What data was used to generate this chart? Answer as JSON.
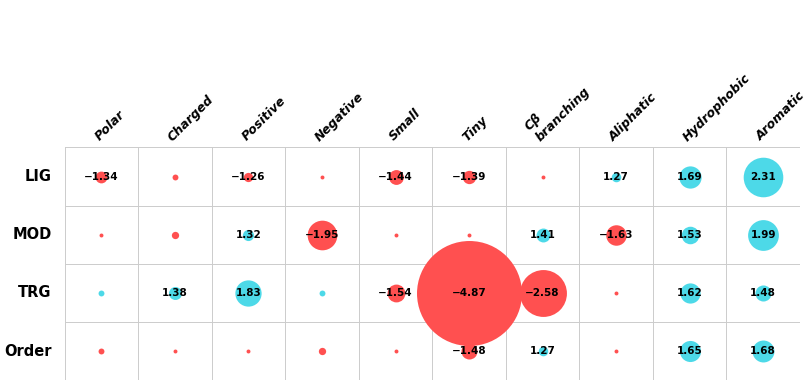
{
  "rows": [
    "LIG",
    "MOD",
    "TRG",
    "Order"
  ],
  "cols": [
    "Polar",
    "Charged",
    "Positive",
    "Negative",
    "Small",
    "Tiny",
    "Cβ\nbranching",
    "Aliphatic",
    "Hydrophobic",
    "Aromatic"
  ],
  "values": [
    [
      -1.34,
      -1.1,
      -1.26,
      -1.05,
      -1.44,
      -1.39,
      -1.05,
      1.27,
      1.69,
      2.31
    ],
    [
      -1.05,
      -1.2,
      1.32,
      -1.95,
      -1.05,
      -1.05,
      1.41,
      -1.63,
      1.53,
      1.99
    ],
    [
      1.1,
      1.38,
      1.83,
      1.1,
      -1.54,
      -4.87,
      -2.58,
      -1.05,
      1.62,
      1.48
    ],
    [
      -1.1,
      -1.05,
      -1.05,
      -1.2,
      -1.05,
      -1.48,
      1.27,
      -1.05,
      1.65,
      1.68
    ]
  ],
  "color_positive": "#4DD9E8",
  "color_negative": "#FF5050",
  "bg_color": "#FFFFFF",
  "grid_color": "#CCCCCC",
  "label_threshold": 1.22,
  "fontsize_label": 7.5,
  "fontsize_col": 9,
  "fontsize_row": 10.5
}
